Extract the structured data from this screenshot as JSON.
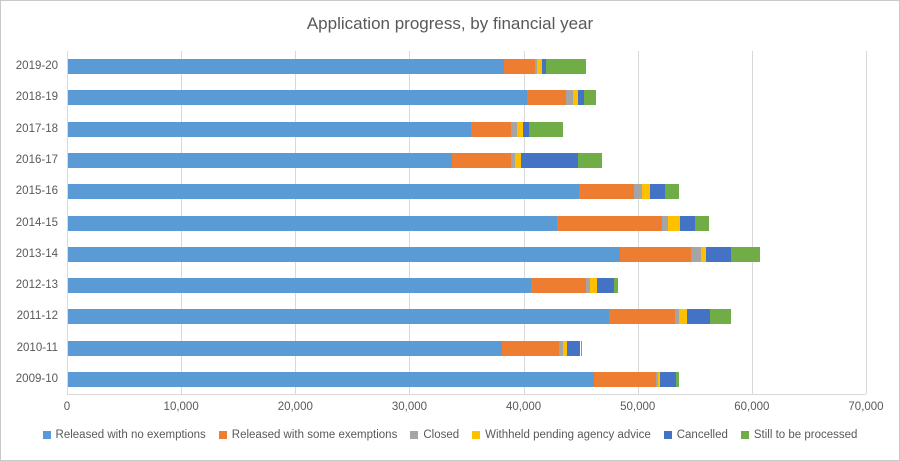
{
  "title": "Application progress, by financial year",
  "chart_data": {
    "type": "bar",
    "orientation": "horizontal",
    "stacked": true,
    "title": "Application progress, by financial year",
    "categories": [
      "2019-20",
      "2018-19",
      "2017-18",
      "2016-17",
      "2015-16",
      "2014-15",
      "2013-14",
      "2012-13",
      "2011-12",
      "2010-11",
      "2009-10"
    ],
    "series": [
      {
        "name": "Released with no exemptions",
        "color": "#5b9bd5",
        "values": [
          38200,
          40250,
          35300,
          33600,
          44800,
          42800,
          48400,
          40600,
          47400,
          38000,
          46050
        ]
      },
      {
        "name": "Released with some exemptions",
        "color": "#ed7d31",
        "values": [
          2750,
          3350,
          3500,
          5200,
          4800,
          9200,
          6150,
          4800,
          5800,
          5000,
          5450
        ]
      },
      {
        "name": "Closed",
        "color": "#a5a5a5",
        "values": [
          100,
          600,
          500,
          350,
          700,
          600,
          900,
          350,
          350,
          350,
          200
        ]
      },
      {
        "name": "Withheld pending agency advice",
        "color": "#ffc000",
        "values": [
          450,
          500,
          600,
          500,
          700,
          1050,
          450,
          600,
          700,
          350,
          200
        ]
      },
      {
        "name": "Cancelled",
        "color": "#4472c4",
        "values": [
          350,
          500,
          450,
          5000,
          1300,
          1300,
          2200,
          1500,
          2000,
          1200,
          1400
        ]
      },
      {
        "name": "Still to be processed",
        "color": "#70ad47",
        "values": [
          3500,
          1100,
          3000,
          2100,
          1250,
          1250,
          2550,
          300,
          1850,
          150,
          200
        ]
      }
    ],
    "x_axis": {
      "min": 0,
      "max": 70000,
      "tick_interval": 10000,
      "tick_labels": [
        "0",
        "10,000",
        "20,000",
        "30,000",
        "40,000",
        "50,000",
        "60,000",
        "70,000"
      ]
    },
    "grid": true,
    "legend_position": "bottom",
    "text_color": "#595959",
    "gridline_color": "#d9d9d9"
  }
}
